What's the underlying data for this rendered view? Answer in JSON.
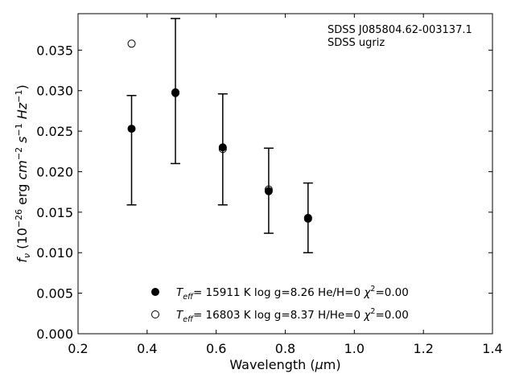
{
  "chart_data": {
    "type": "scatter",
    "title": "",
    "annotation_lines": [
      "SDSS J085804.62-003137.1",
      "SDSS ugriz"
    ],
    "annotation_position": "top-right",
    "xlabel": {
      "prefix": "Wavelength (",
      "mu": "μ",
      "suffix": "m)"
    },
    "ylabel": {
      "f": "f",
      "nu": "ν",
      "open": " (10",
      "exp26": "−26",
      "erg": " erg ",
      "cm": "cm",
      "exp2": "−2",
      "s": " s",
      "exp1a": "−1",
      "hz": " Hz",
      "exp1b": "−1",
      "close": ")"
    },
    "xlim": [
      0.2,
      1.4
    ],
    "ylim": [
      0.0,
      0.0395
    ],
    "x_ticks": [
      0.2,
      0.4,
      0.6,
      0.8,
      1.0,
      1.2,
      1.4
    ],
    "x_tick_labels": [
      "0.2",
      "0.4",
      "0.6",
      "0.8",
      "1.0",
      "1.2",
      "1.4"
    ],
    "y_ticks": [
      0.0,
      0.005,
      0.01,
      0.015,
      0.02,
      0.025,
      0.03,
      0.035
    ],
    "y_tick_labels": [
      "0.000",
      "0.005",
      "0.010",
      "0.015",
      "0.020",
      "0.025",
      "0.030",
      "0.035"
    ],
    "grid": false,
    "legend_position": "bottom-center",
    "observed": {
      "x": [
        0.355,
        0.482,
        0.619,
        0.752,
        0.866
      ],
      "y": [
        0.0253,
        0.0298,
        0.023,
        0.0176,
        0.0142
      ],
      "y_lo": [
        0.0159,
        0.021,
        0.0159,
        0.0124,
        0.01
      ],
      "y_hi": [
        0.0294,
        0.0389,
        0.0296,
        0.0229,
        0.0186
      ]
    },
    "series": [
      {
        "marker": "filled-circle",
        "x": [
          0.355,
          0.482,
          0.619,
          0.752,
          0.866
        ],
        "y": [
          0.0253,
          0.0298,
          0.023,
          0.0176,
          0.0142
        ],
        "label": {
          "t": "T",
          "sub": "eff",
          "rest": "= 15911 K  log g=8.26  He/H=0  ",
          "chi": "χ",
          "sup": "2",
          "tail": "=0.00"
        }
      },
      {
        "marker": "open-circle",
        "x": [
          0.355,
          0.482,
          0.619,
          0.752,
          0.866
        ],
        "y": [
          0.0358,
          0.0297,
          0.0228,
          0.0178,
          0.0143
        ],
        "label": {
          "t": "T",
          "sub": "eff",
          "rest": "= 16803 K  log g=8.37  H/He=0  ",
          "chi": "χ",
          "sup": "2",
          "tail": "=0.00"
        }
      }
    ],
    "colors": {
      "marker": "#000000",
      "errorbar": "#000000",
      "axes": "#000000"
    }
  }
}
